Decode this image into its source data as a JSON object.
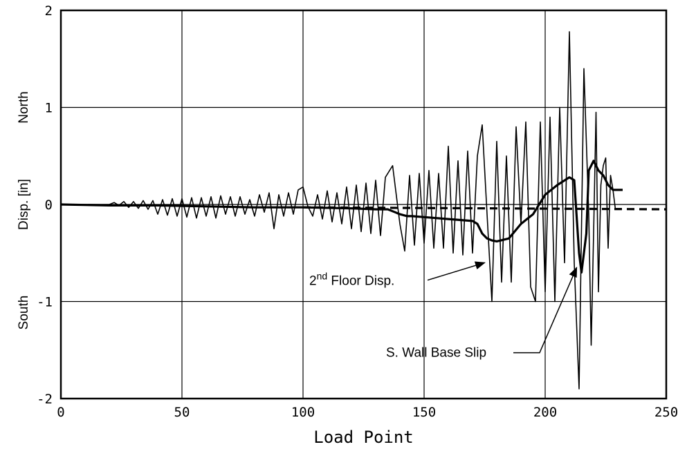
{
  "chart_data": {
    "type": "line",
    "title": "",
    "xlabel": "Load Point",
    "ylabel": "Disp. [in]",
    "ylabel_top": "North",
    "ylabel_bottom": "South",
    "xlim": [
      0,
      250
    ],
    "ylim": [
      -2,
      2
    ],
    "xticks": [
      0,
      50,
      100,
      150,
      200,
      250
    ],
    "yticks": [
      -2,
      -1,
      0,
      1,
      2
    ],
    "xtick_labels": [
      "0",
      "50",
      "100",
      "150",
      "200",
      "250"
    ],
    "ytick_labels": [
      "-2",
      "-1",
      "0",
      "1",
      "2"
    ],
    "grid": true,
    "series": [
      {
        "name": "2nd Floor Disp.",
        "name_base": "2",
        "name_sup": "nd",
        "name_rest": " Floor Disp.",
        "x": [
          0,
          20,
          22,
          24,
          26,
          28,
          30,
          32,
          34,
          36,
          38,
          40,
          42,
          44,
          46,
          48,
          50,
          52,
          54,
          56,
          58,
          60,
          62,
          64,
          66,
          68,
          70,
          72,
          74,
          76,
          78,
          80,
          82,
          84,
          86,
          88,
          90,
          92,
          94,
          96,
          98,
          100,
          102,
          104,
          106,
          108,
          110,
          112,
          114,
          116,
          118,
          120,
          122,
          124,
          126,
          128,
          130,
          132,
          134,
          137,
          140,
          142,
          144,
          146,
          148,
          150,
          152,
          154,
          156,
          158,
          160,
          162,
          164,
          166,
          168,
          170,
          172,
          174,
          176,
          178,
          180,
          182,
          184,
          186,
          188,
          190,
          192,
          194,
          196,
          198,
          200,
          202,
          204,
          206,
          208,
          210,
          212,
          214,
          216,
          218,
          219,
          220,
          221,
          222,
          223,
          224,
          225,
          226,
          227,
          228,
          229
        ],
        "y": [
          0,
          0,
          0.02,
          -0.01,
          0.03,
          -0.03,
          0.03,
          -0.04,
          0.04,
          -0.05,
          0.04,
          -0.1,
          0.05,
          -0.11,
          0.06,
          -0.12,
          0.06,
          -0.13,
          0.07,
          -0.14,
          0.07,
          -0.12,
          0.08,
          -0.14,
          0.09,
          -0.1,
          0.08,
          -0.12,
          0.08,
          -0.1,
          0.05,
          -0.12,
          0.1,
          -0.08,
          0.12,
          -0.25,
          0.1,
          -0.12,
          0.12,
          -0.1,
          0.15,
          0.18,
          -0.02,
          -0.12,
          0.1,
          -0.15,
          0.14,
          -0.18,
          0.12,
          -0.2,
          0.18,
          -0.25,
          0.2,
          -0.28,
          0.22,
          -0.3,
          0.25,
          -0.32,
          0.28,
          0.4,
          -0.2,
          -0.48,
          0.3,
          -0.42,
          0.32,
          -0.4,
          0.35,
          -0.45,
          0.32,
          -0.45,
          0.6,
          -0.5,
          0.45,
          -0.52,
          0.55,
          -0.5,
          0.5,
          0.82,
          -0.1,
          -1,
          0.65,
          -0.8,
          0.5,
          -0.8,
          0.8,
          -0.2,
          0.85,
          -0.85,
          -1,
          0.85,
          -0.9,
          0.9,
          -1,
          1,
          -0.6,
          1.78,
          -0.6,
          -1.9,
          1.4,
          -0.1,
          -1.45,
          -0.3,
          0.95,
          -0.9,
          0.2,
          0.4,
          0.48,
          -0.45,
          0.3,
          0.15,
          -0.05
        ]
      },
      {
        "name": "S. Wall Base Slip",
        "x": [
          0,
          20,
          40,
          60,
          80,
          100,
          120,
          130,
          135,
          138,
          140,
          143,
          145,
          150,
          155,
          160,
          165,
          170,
          172,
          174,
          176,
          178,
          180,
          185,
          190,
          195,
          200,
          205,
          210,
          212,
          214,
          215,
          217,
          218,
          219,
          220,
          222,
          224,
          226,
          228,
          230,
          232
        ],
        "y": [
          0,
          -0.01,
          -0.01,
          -0.02,
          -0.03,
          -0.03,
          -0.04,
          -0.05,
          -0.05,
          -0.08,
          -0.1,
          -0.12,
          -0.12,
          -0.13,
          -0.14,
          -0.15,
          -0.16,
          -0.17,
          -0.2,
          -0.3,
          -0.35,
          -0.37,
          -0.38,
          -0.35,
          -0.2,
          -0.1,
          0.1,
          0.2,
          0.28,
          0.25,
          -0.5,
          -0.7,
          -0.3,
          0.35,
          0.4,
          0.45,
          0.35,
          0.3,
          0.2,
          0.15,
          0.15,
          0.15
        ]
      },
      {
        "name": "dashed",
        "x": [
          100,
          250
        ],
        "y": [
          -0.03,
          -0.05
        ]
      }
    ],
    "annotations": [
      {
        "label": "2nd Floor Disp.",
        "arrow_to_x": 175,
        "arrow_to_y": -0.6
      },
      {
        "label": "S. Wall Base Slip",
        "arrow_to_x": 213,
        "arrow_to_y": -0.65
      }
    ]
  }
}
